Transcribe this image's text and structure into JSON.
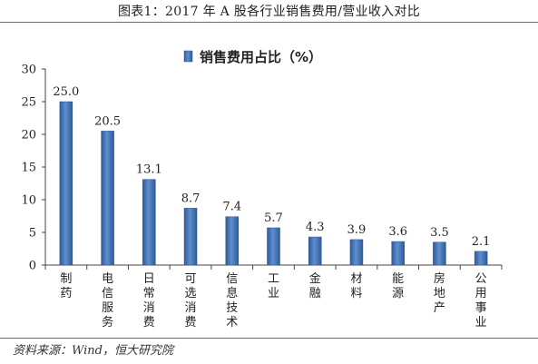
{
  "header": {
    "title": "图表1：2017 年 A 股各行业销售费用/营业收入对比"
  },
  "footer": {
    "source": "资料来源：Wind，恒大研究院"
  },
  "chart_data": {
    "type": "bar",
    "title": "",
    "xlabel": "",
    "ylabel": "",
    "ylim": [
      0,
      30
    ],
    "yticks": [
      0,
      5,
      10,
      15,
      20,
      25,
      30
    ],
    "legend": {
      "position": "top-center"
    },
    "grid": false,
    "bar_color": "#4a76b3",
    "categories": [
      [
        "制",
        "药"
      ],
      [
        "电",
        "信",
        "服",
        "务"
      ],
      [
        "日",
        "常",
        "消",
        "费"
      ],
      [
        "可",
        "选",
        "消",
        "费"
      ],
      [
        "信",
        "息",
        "技",
        "术"
      ],
      [
        "工",
        "业"
      ],
      [
        "金",
        "融"
      ],
      [
        "材",
        "料"
      ],
      [
        "能",
        "源"
      ],
      [
        "房",
        "地",
        "产"
      ],
      [
        "公",
        "用",
        "事",
        "业"
      ]
    ],
    "series": [
      {
        "name": "销售费用占比（%）",
        "values": [
          25.0,
          20.5,
          13.1,
          8.7,
          7.4,
          5.7,
          4.3,
          3.9,
          3.6,
          3.5,
          2.1
        ],
        "labels": [
          "25.0",
          "20.5",
          "13.1",
          "8.7",
          "7.4",
          "5.7",
          "4.3",
          "3.9",
          "3.6",
          "3.5",
          "2.1"
        ]
      }
    ]
  }
}
